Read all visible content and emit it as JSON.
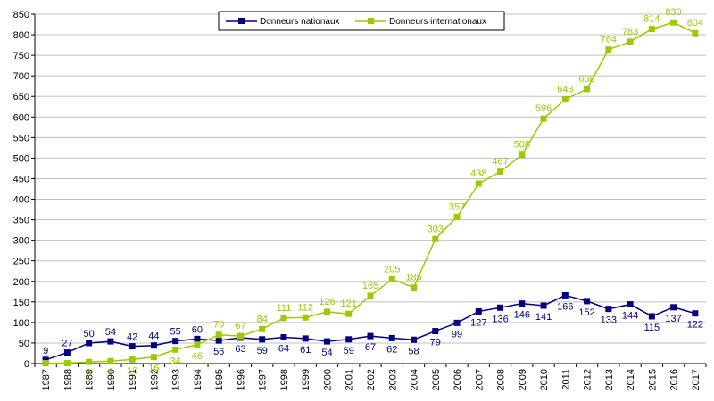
{
  "chart_data": {
    "type": "line",
    "title": "",
    "xlabel": "",
    "ylabel": "",
    "ylim": [
      0,
      850
    ],
    "yticks": [
      0,
      50,
      100,
      150,
      200,
      250,
      300,
      350,
      400,
      450,
      500,
      550,
      600,
      650,
      700,
      750,
      800,
      850
    ],
    "categories": [
      "1987",
      "1988",
      "1989",
      "1990",
      "1991",
      "1992",
      "1993",
      "1994",
      "1995",
      "1996",
      "1997",
      "1998",
      "1999",
      "2000",
      "2001",
      "2002",
      "2003",
      "2004",
      "2005",
      "2006",
      "2007",
      "2008",
      "2009",
      "2010",
      "2011",
      "2012",
      "2013",
      "2014",
      "2015",
      "2016",
      "2017"
    ],
    "legend_position": "top-center",
    "series": [
      {
        "name": "Donneurs nationaux",
        "color": "#000080",
        "marker": "square",
        "values": [
          9,
          27,
          50,
          54,
          42,
          44,
          55,
          60,
          56,
          63,
          59,
          64,
          61,
          54,
          59,
          67,
          62,
          58,
          79,
          99,
          127,
          136,
          146,
          141,
          166,
          152,
          133,
          144,
          115,
          137,
          122
        ],
        "labels": [
          "9",
          "27",
          "50",
          "54",
          "42",
          "44",
          "55",
          "60",
          "56",
          "63",
          "59",
          "64",
          "61",
          "54",
          "59",
          "67",
          "62",
          "58",
          "79",
          "99",
          "127",
          "136",
          "146",
          "141",
          "166",
          "152",
          "133",
          "144",
          "115",
          "137",
          "122"
        ]
      },
      {
        "name": "Donneurs internationaux",
        "color": "#99CC00",
        "marker": "square",
        "values": [
          1,
          1,
          4,
          6,
          10,
          16,
          34,
          46,
          70,
          67,
          84,
          111,
          112,
          126,
          121,
          165,
          205,
          185,
          303,
          357,
          438,
          467,
          508,
          596,
          643,
          668,
          764,
          783,
          814,
          830,
          804
        ],
        "labels": [
          "1",
          "",
          "4",
          "6",
          "10",
          "16",
          "34",
          "46",
          "70",
          "67",
          "84",
          "111",
          "112",
          "126",
          "121",
          "165",
          "205",
          "185",
          "303",
          "357",
          "438",
          "467",
          "508",
          "596",
          "643",
          "668",
          "764",
          "783",
          "814",
          "830",
          "804"
        ]
      }
    ]
  }
}
